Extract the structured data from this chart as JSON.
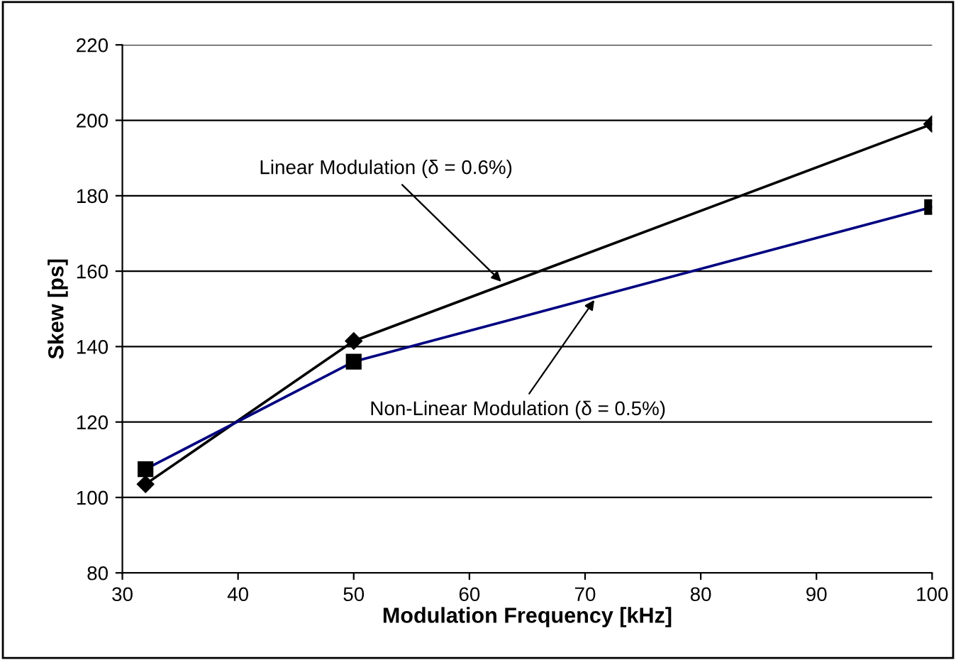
{
  "chart_data": {
    "type": "line",
    "xlabel": "Modulation Frequency [kHz]",
    "ylabel": "Skew [ps]",
    "series": [
      {
        "x": [
          32,
          50,
          100
        ],
        "values": [
          103.5,
          141.5,
          199
        ],
        "color": "#000000",
        "marker": "diamond"
      },
      {
        "x": [
          32,
          50,
          100
        ],
        "values": [
          107.5,
          136,
          177
        ],
        "color": "#000080",
        "marker": "square"
      }
    ],
    "xlim": [
      30,
      100
    ],
    "xticks": [
      30,
      40,
      50,
      60,
      70,
      80,
      90,
      100
    ],
    "ylim": [
      80,
      220
    ],
    "yticks": [
      80,
      100,
      120,
      140,
      160,
      180,
      200,
      220
    ],
    "grid": "y",
    "legend": false,
    "annotations": [
      {
        "text": "Linear Modulation (δ = 0.6%)",
        "x": 63,
        "y": 156.5
      },
      {
        "text": "Non-Linear Modulation (δ = 0.5%)",
        "x": 71,
        "y": 153.2
      }
    ]
  }
}
